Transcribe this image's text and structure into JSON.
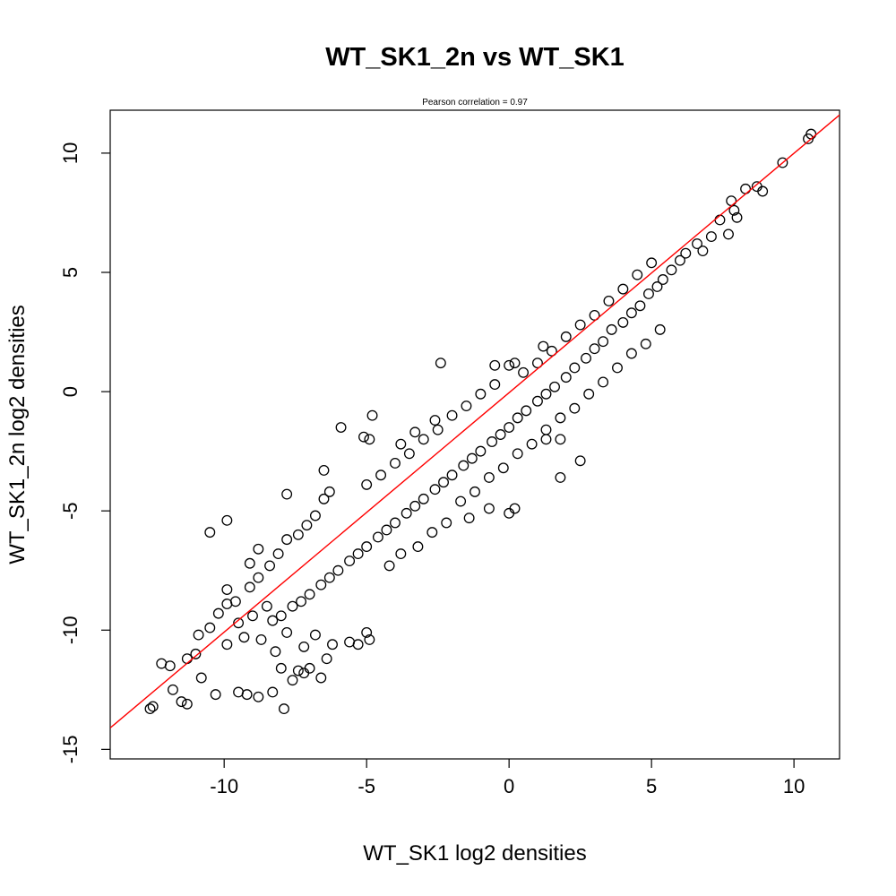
{
  "chart_data": {
    "type": "scatter",
    "title": "WT_SK1_2n vs WT_SK1",
    "subtitle": "Pearson correlation =  0.97",
    "xlabel": "WT_SK1 log2 densities",
    "ylabel": "WT_SK1_2n log2 densities",
    "xlim": [
      -14.0,
      11.6
    ],
    "ylim": [
      -15.4,
      11.8
    ],
    "xticks": [
      -10,
      -5,
      0,
      5,
      10
    ],
    "yticks": [
      -15,
      -10,
      -5,
      0,
      5,
      10
    ],
    "grid": false,
    "legend": "none",
    "fit_line": {
      "color": "#ff0000",
      "points": [
        [
          -14.0,
          -14.1
        ],
        [
          11.6,
          11.6
        ]
      ]
    },
    "marker": {
      "shape": "open-circle",
      "color": "#000000"
    },
    "series": [
      {
        "points": [
          [
            -12.6,
            -13.3
          ],
          [
            -12.5,
            -13.2
          ],
          [
            -11.8,
            -12.5
          ],
          [
            -11.5,
            -13.0
          ],
          [
            -11.3,
            -13.1
          ],
          [
            -11.9,
            -11.5
          ],
          [
            -12.2,
            -11.4
          ],
          [
            -11.3,
            -11.2
          ],
          [
            -11.0,
            -11.0
          ],
          [
            -10.8,
            -12.0
          ],
          [
            -10.3,
            -12.7
          ],
          [
            -9.5,
            -12.6
          ],
          [
            -9.2,
            -12.7
          ],
          [
            -8.8,
            -12.8
          ],
          [
            -8.3,
            -12.6
          ],
          [
            -7.9,
            -13.3
          ],
          [
            -7.6,
            -12.1
          ],
          [
            -7.4,
            -11.7
          ],
          [
            -10.9,
            -10.2
          ],
          [
            -10.5,
            -9.9
          ],
          [
            -10.2,
            -9.3
          ],
          [
            -9.9,
            -8.9
          ],
          [
            -9.6,
            -8.8
          ],
          [
            -9.9,
            -8.3
          ],
          [
            -10.5,
            -5.9
          ],
          [
            -9.9,
            -5.4
          ],
          [
            -9.1,
            -7.2
          ],
          [
            -8.8,
            -6.6
          ],
          [
            -7.8,
            -4.3
          ],
          [
            -6.5,
            -3.3
          ],
          [
            -5.9,
            -1.5
          ],
          [
            -5.1,
            -1.9
          ],
          [
            -4.9,
            -2.0
          ],
          [
            -4.8,
            -1.0
          ],
          [
            -3.8,
            -2.2
          ],
          [
            -3.3,
            -1.7
          ],
          [
            -2.6,
            -1.2
          ],
          [
            -2.4,
            1.2
          ],
          [
            -0.5,
            1.1
          ],
          [
            0.0,
            1.1
          ],
          [
            0.2,
            1.2
          ],
          [
            1.2,
            1.9
          ],
          [
            1.3,
            -2.0
          ],
          [
            1.8,
            -2.0
          ],
          [
            1.8,
            -3.6
          ],
          [
            2.5,
            -2.9
          ],
          [
            0.2,
            -4.9
          ],
          [
            0.0,
            -5.1
          ],
          [
            -0.7,
            -4.9
          ],
          [
            -1.4,
            -5.3
          ],
          [
            -5.6,
            -10.5
          ],
          [
            -5.0,
            -10.1
          ],
          [
            -4.9,
            -10.4
          ],
          [
            -5.3,
            -10.6
          ],
          [
            -6.2,
            -10.6
          ],
          [
            -6.4,
            -11.2
          ],
          [
            -7.0,
            -11.6
          ],
          [
            -6.6,
            -12.0
          ],
          [
            -7.2,
            -11.8
          ],
          [
            -8.0,
            -11.6
          ],
          [
            10.6,
            10.8
          ],
          [
            10.5,
            10.6
          ],
          [
            9.6,
            9.6
          ],
          [
            8.7,
            8.6
          ],
          [
            8.9,
            8.4
          ],
          [
            8.3,
            8.5
          ],
          [
            7.8,
            8.0
          ],
          [
            7.9,
            7.6
          ],
          [
            8.0,
            7.3
          ],
          [
            7.4,
            7.2
          ],
          [
            7.7,
            6.6
          ],
          [
            7.1,
            6.5
          ],
          [
            6.6,
            6.2
          ],
          [
            6.8,
            5.9
          ],
          [
            6.2,
            5.8
          ],
          [
            6.0,
            5.5
          ],
          [
            5.7,
            5.1
          ],
          [
            5.4,
            4.7
          ],
          [
            5.2,
            4.4
          ],
          [
            4.9,
            4.1
          ],
          [
            4.6,
            3.6
          ],
          [
            4.3,
            3.3
          ],
          [
            4.0,
            2.9
          ],
          [
            3.6,
            2.6
          ],
          [
            3.3,
            2.1
          ],
          [
            3.0,
            1.8
          ],
          [
            2.7,
            1.4
          ],
          [
            2.3,
            1.0
          ],
          [
            2.0,
            0.6
          ],
          [
            1.6,
            0.2
          ],
          [
            1.3,
            -0.1
          ],
          [
            1.0,
            -0.4
          ],
          [
            0.6,
            -0.8
          ],
          [
            0.3,
            -1.1
          ],
          [
            0.0,
            -1.5
          ],
          [
            -0.3,
            -1.8
          ],
          [
            -0.6,
            -2.1
          ],
          [
            -1.0,
            -2.5
          ],
          [
            -1.3,
            -2.8
          ],
          [
            -1.6,
            -3.1
          ],
          [
            -2.0,
            -3.5
          ],
          [
            -2.3,
            -3.8
          ],
          [
            -2.6,
            -4.1
          ],
          [
            -3.0,
            -4.5
          ],
          [
            -3.3,
            -4.8
          ],
          [
            -3.6,
            -5.1
          ],
          [
            -4.0,
            -5.5
          ],
          [
            -4.3,
            -5.8
          ],
          [
            -4.6,
            -6.1
          ],
          [
            -5.0,
            -6.5
          ],
          [
            -5.3,
            -6.8
          ],
          [
            -5.6,
            -7.1
          ],
          [
            -6.0,
            -7.5
          ],
          [
            -6.3,
            -7.8
          ],
          [
            -6.6,
            -8.1
          ],
          [
            -7.0,
            -8.5
          ],
          [
            -7.3,
            -8.8
          ],
          [
            -7.6,
            -9.0
          ],
          [
            -8.0,
            -9.4
          ],
          [
            -8.3,
            -9.6
          ],
          [
            -6.3,
            -4.2
          ],
          [
            -6.5,
            -4.5
          ],
          [
            -6.8,
            -5.2
          ],
          [
            -7.1,
            -5.6
          ],
          [
            -7.4,
            -6.0
          ],
          [
            -7.8,
            -6.2
          ],
          [
            -8.1,
            -6.8
          ],
          [
            -8.4,
            -7.3
          ],
          [
            -8.8,
            -7.8
          ],
          [
            -9.1,
            -8.2
          ],
          [
            -5.0,
            -3.9
          ],
          [
            -4.5,
            -3.5
          ],
          [
            -4.0,
            -3.0
          ],
          [
            -3.5,
            -2.6
          ],
          [
            -3.0,
            -2.0
          ],
          [
            -2.5,
            -1.6
          ],
          [
            -2.0,
            -1.0
          ],
          [
            -1.5,
            -0.6
          ],
          [
            -1.0,
            -0.1
          ],
          [
            -0.5,
            0.3
          ],
          [
            0.5,
            0.8
          ],
          [
            1.0,
            1.2
          ],
          [
            1.5,
            1.7
          ],
          [
            2.0,
            2.3
          ],
          [
            2.5,
            2.8
          ],
          [
            3.0,
            3.2
          ],
          [
            3.5,
            3.8
          ],
          [
            4.0,
            4.3
          ],
          [
            4.5,
            4.9
          ],
          [
            5.0,
            5.4
          ],
          [
            -9.5,
            -9.7
          ],
          [
            -9.0,
            -9.4
          ],
          [
            -8.5,
            -9.0
          ],
          [
            -9.3,
            -10.3
          ],
          [
            -8.7,
            -10.4
          ],
          [
            -8.2,
            -10.9
          ],
          [
            -7.8,
            -10.1
          ],
          [
            -7.2,
            -10.7
          ],
          [
            -6.8,
            -10.2
          ],
          [
            -9.9,
            -10.6
          ],
          [
            -4.2,
            -7.3
          ],
          [
            -3.8,
            -6.8
          ],
          [
            -3.2,
            -6.5
          ],
          [
            -2.7,
            -5.9
          ],
          [
            -2.2,
            -5.5
          ],
          [
            -1.7,
            -4.6
          ],
          [
            -1.2,
            -4.2
          ],
          [
            -0.7,
            -3.6
          ],
          [
            -0.2,
            -3.2
          ],
          [
            0.3,
            -2.6
          ],
          [
            0.8,
            -2.2
          ],
          [
            1.3,
            -1.6
          ],
          [
            1.8,
            -1.1
          ],
          [
            2.3,
            -0.7
          ],
          [
            2.8,
            -0.1
          ],
          [
            3.3,
            0.4
          ],
          [
            3.8,
            1.0
          ],
          [
            4.3,
            1.6
          ],
          [
            4.8,
            2.0
          ],
          [
            5.3,
            2.6
          ]
        ]
      }
    ]
  }
}
